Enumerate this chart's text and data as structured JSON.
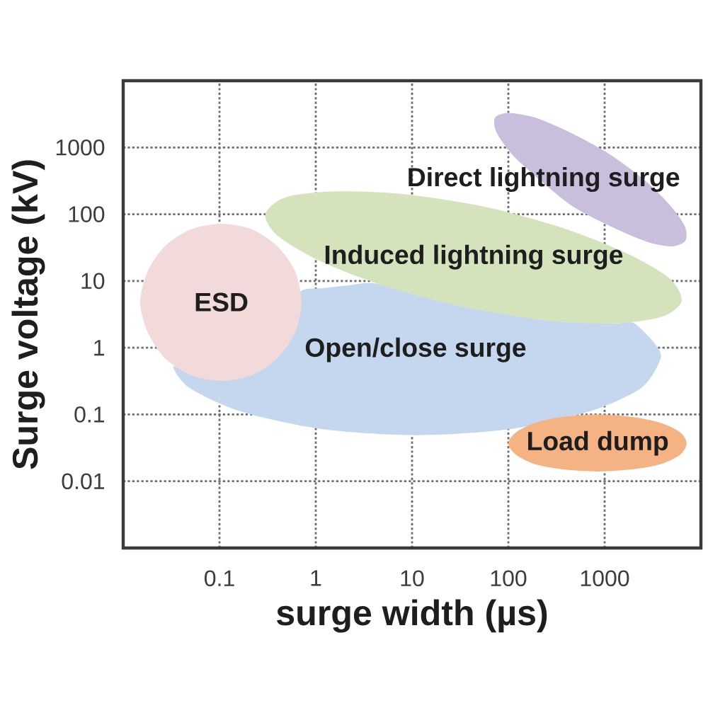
{
  "chart_data": {
    "type": "area",
    "xlabel": "surge width (µs)",
    "ylabel": "Surge voltage (kV)",
    "log": "xy",
    "xlim": [
      0.01,
      10000
    ],
    "ylim": [
      0.001,
      10000
    ],
    "xticks": [
      0.1,
      1,
      10,
      100,
      1000
    ],
    "yticks": [
      0.01,
      0.1,
      1,
      10,
      100,
      1000
    ],
    "grid": true,
    "series": [
      {
        "name": "Open/close surge",
        "color": "#c5d7ef",
        "x": [
          3800,
          3400,
          2400,
          1900,
          1200,
          560,
          230,
          90,
          34,
          13,
          4.1,
          2.2,
          1.2,
          0.69,
          0.62,
          0.47,
          0.3,
          0.17,
          0.09,
          0.049,
          0.033,
          0.049,
          0.17,
          1.2,
          11,
          100,
          680,
          2400
        ],
        "values": [
          0.68,
          1.1,
          1.9,
          2.4,
          2.3,
          2.6,
          2.6,
          3.5,
          4.1,
          6.3,
          9.2,
          8.6,
          7.8,
          6.9,
          2.4,
          1.1,
          0.56,
          0.38,
          0.35,
          0.44,
          0.52,
          0.25,
          0.11,
          0.06,
          0.049,
          0.06,
          0.11,
          0.25
        ]
      },
      {
        "name": "Induced lightning surge",
        "color": "#d5e3bd",
        "x": [
          6300,
          4700,
          1700,
          370,
          56,
          8.2,
          1.6,
          0.49,
          0.3,
          0.4,
          1.1,
          5.2,
          34,
          230,
          1200,
          3900
        ],
        "values": [
          5.0,
          11,
          26,
          62,
          130,
          200,
          220,
          180,
          100,
          48,
          20,
          8.4,
          4.1,
          2.6,
          2.3,
          2.9
        ]
      },
      {
        "name": "Direct lightning surge",
        "color": "#c9bfdc",
        "x": [
          6900,
          6800,
          4700,
          2500,
          1100,
          430,
          190,
          100,
          73,
          75,
          110,
          210,
          470,
          1200,
          2700,
          5000
        ],
        "values": [
          40,
          66,
          140,
          340,
          810,
          1700,
          2800,
          3300,
          2800,
          1700,
          780,
          330,
          130,
          64,
          39,
          33
        ]
      },
      {
        "name": "Load dump",
        "color": "#f5b383",
        "x": [
          7100,
          6100,
          3800,
          1900,
          840,
          370,
          190,
          120,
          100,
          120,
          190,
          370,
          840,
          1900,
          3800,
          6100
        ],
        "values": [
          0.037,
          0.054,
          0.075,
          0.092,
          0.1,
          0.092,
          0.075,
          0.054,
          0.037,
          0.025,
          0.018,
          0.015,
          0.014,
          0.015,
          0.018,
          0.025
        ]
      },
      {
        "name": "ESD",
        "color": "#f3dada",
        "x": [
          0.71,
          0.61,
          0.4,
          0.22,
          0.105,
          0.05,
          0.027,
          0.018,
          0.015,
          0.018,
          0.027,
          0.05,
          0.105,
          0.22,
          0.4,
          0.61
        ],
        "values": [
          4.8,
          14,
          33,
          59,
          72,
          59,
          33,
          14,
          4.8,
          1.7,
          0.7,
          0.39,
          0.32,
          0.39,
          0.7,
          1.7
        ]
      }
    ]
  }
}
